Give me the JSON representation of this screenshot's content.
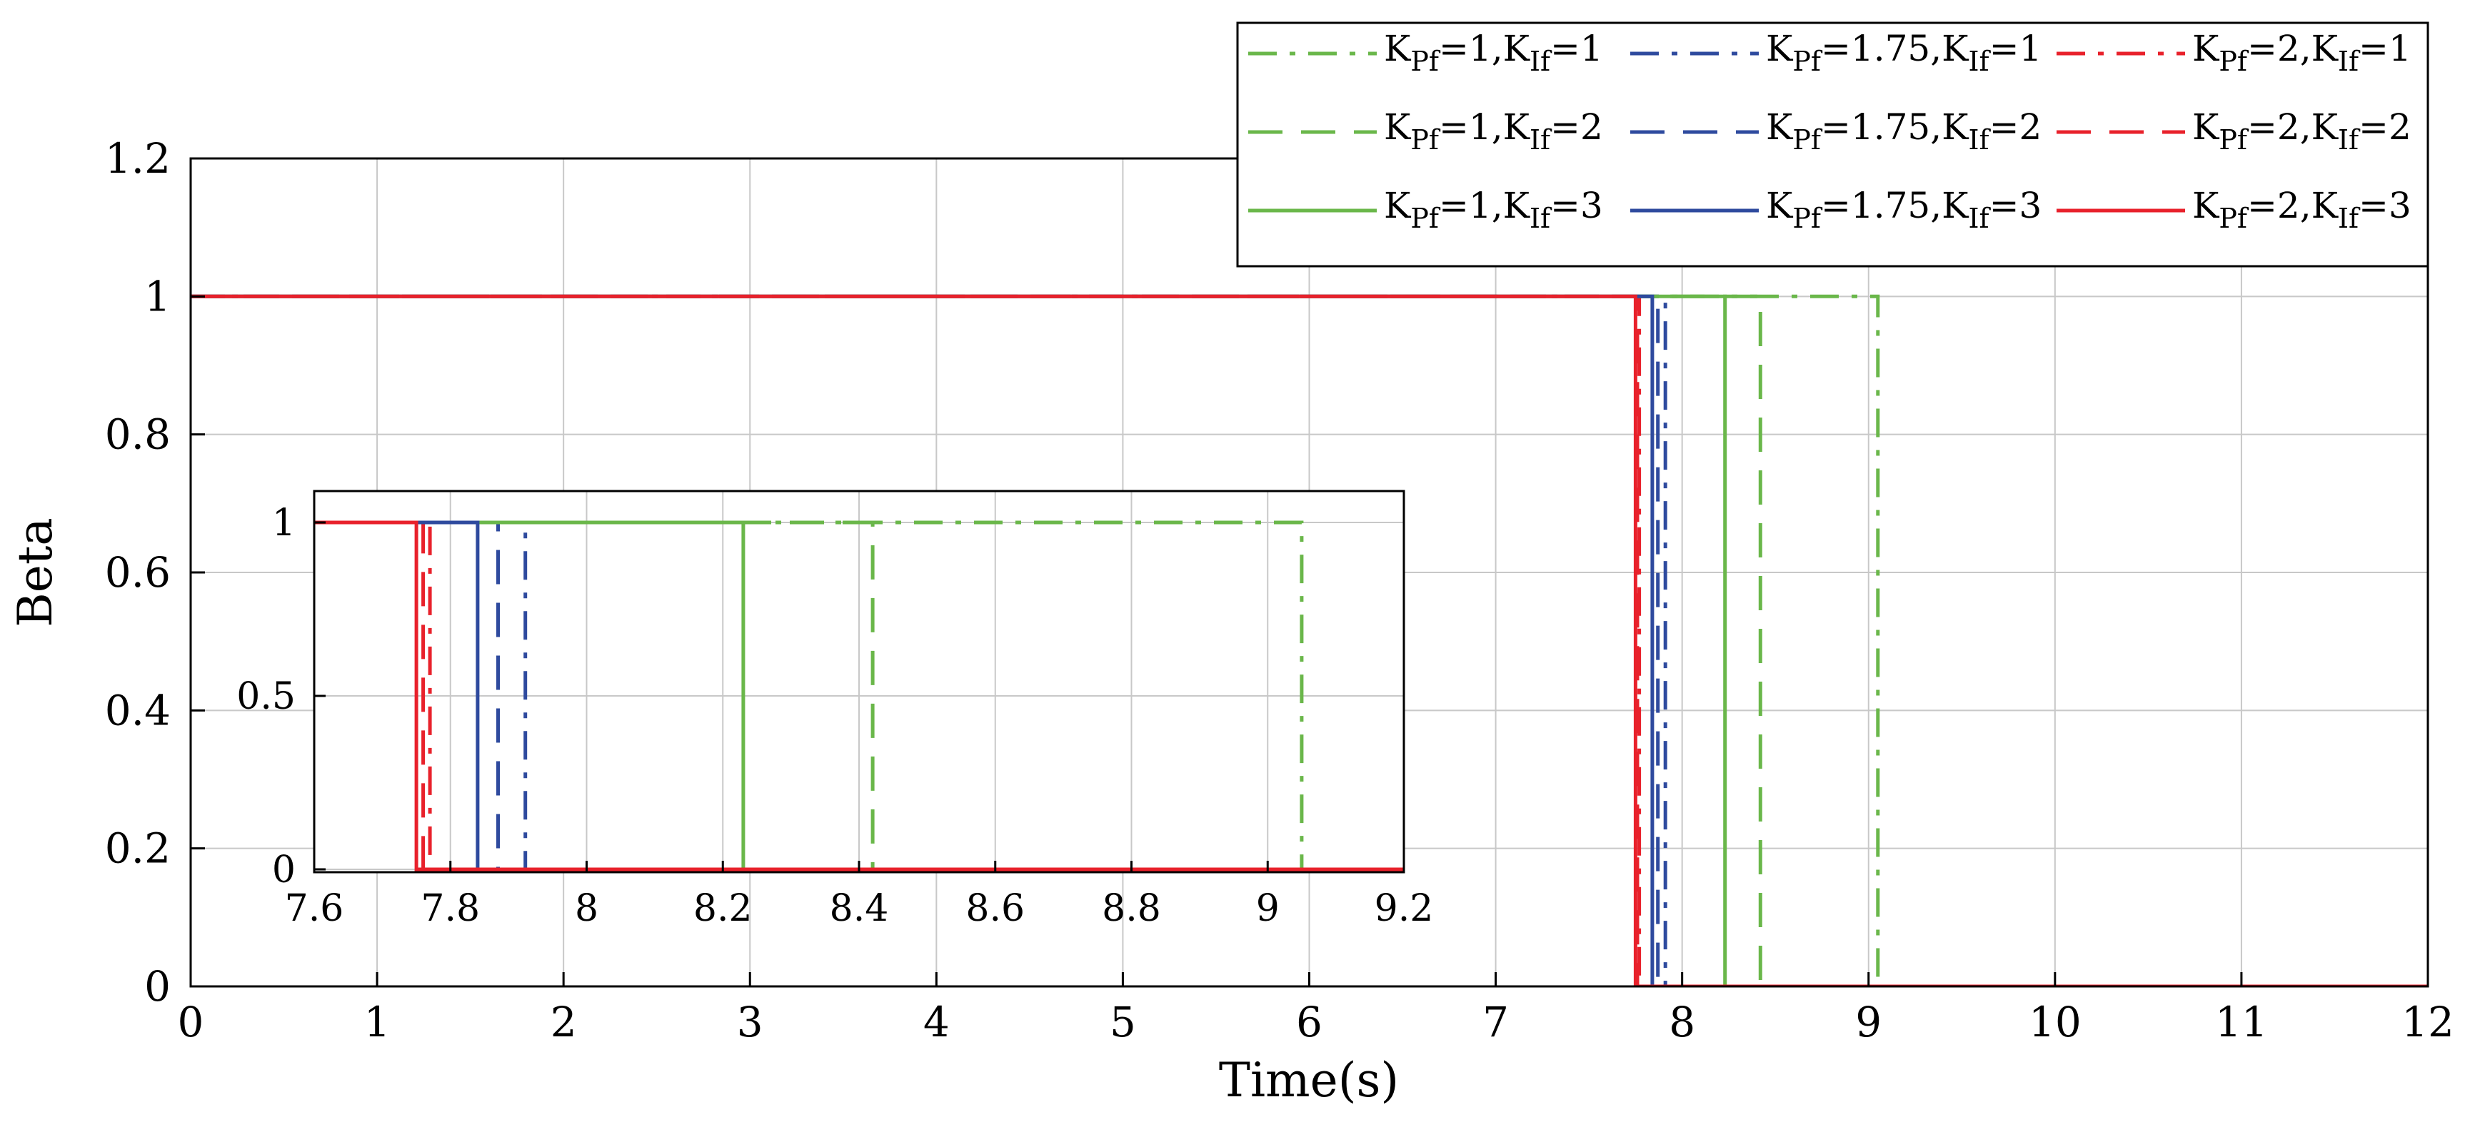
{
  "chart_data": {
    "type": "line",
    "title": "",
    "xlabel": "Time(s)",
    "ylabel": "Beta",
    "xlim": [
      0,
      12
    ],
    "ylim": [
      0,
      1.2
    ],
    "xticks": [
      "0",
      "1",
      "2",
      "3",
      "4",
      "5",
      "6",
      "7",
      "8",
      "9",
      "10",
      "11",
      "12"
    ],
    "yticks": [
      "0",
      "0.2",
      "0.4",
      "0.6",
      "0.8",
      "1",
      "1.2"
    ],
    "grid": true,
    "legend_position": "top-right",
    "inset": {
      "xlim": [
        7.6,
        9.2
      ],
      "ylim": [
        0,
        1
      ],
      "xticks": [
        "7.6",
        "7.8",
        "8",
        "8.2",
        "8.4",
        "8.6",
        "8.8",
        "9",
        "9.2"
      ],
      "yticks": [
        "0",
        "0.5",
        "1"
      ]
    },
    "series": [
      {
        "kpf": "1",
        "kif": "1",
        "color": "#6ab74a",
        "style": "dashdot",
        "switch_time": 9.05
      },
      {
        "kpf": "1.75",
        "kif": "1",
        "color": "#2e4a9e",
        "style": "dashdot",
        "switch_time": 7.91
      },
      {
        "kpf": "2",
        "kif": "1",
        "color": "#e8212b",
        "style": "dashdot",
        "switch_time": 7.77
      },
      {
        "kpf": "1",
        "kif": "2",
        "color": "#6ab74a",
        "style": "dashed",
        "switch_time": 8.42
      },
      {
        "kpf": "1.75",
        "kif": "2",
        "color": "#2e4a9e",
        "style": "dashed",
        "switch_time": 7.87
      },
      {
        "kpf": "2",
        "kif": "2",
        "color": "#e8212b",
        "style": "dashed",
        "switch_time": 7.76
      },
      {
        "kpf": "1",
        "kif": "3",
        "color": "#6ab74a",
        "style": "solid",
        "switch_time": 8.23
      },
      {
        "kpf": "1.75",
        "kif": "3",
        "color": "#2e4a9e",
        "style": "solid",
        "switch_time": 7.84
      },
      {
        "kpf": "2",
        "kif": "3",
        "color": "#e8212b",
        "style": "solid",
        "switch_time": 7.75
      }
    ],
    "series_order": [
      0,
      3,
      6,
      1,
      4,
      7,
      2,
      5,
      8
    ]
  },
  "legend_labels": {
    "k_main": "K",
    "pf_sub": "Pf",
    "if_sub": "If",
    "eq": "=",
    "sep": ","
  }
}
